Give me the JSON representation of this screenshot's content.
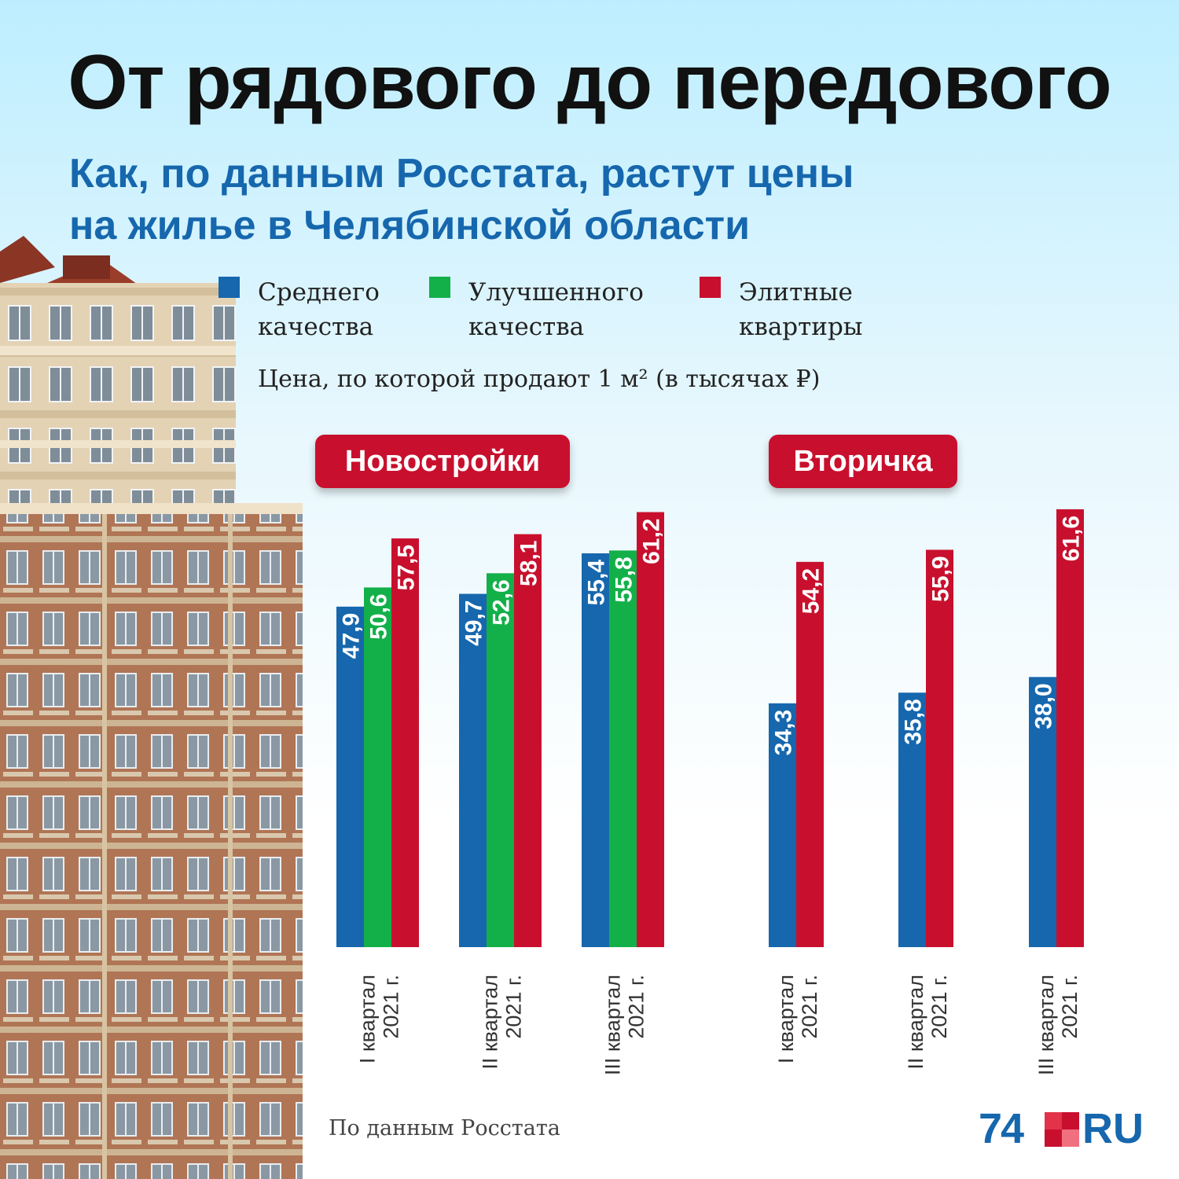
{
  "title": "От рядового до передового",
  "subtitle": {
    "line1": "Как, по данным Росстата, растут цены",
    "line2": "на жилье в Челябинской области"
  },
  "legend": [
    {
      "line1": "Среднего",
      "line2": "качества",
      "color": "#1667ad"
    },
    {
      "line1": "Улучшенного",
      "line2": "качества",
      "color": "#13b04a"
    },
    {
      "line1": "Элитные",
      "line2": "квартиры",
      "color": "#c8102e"
    }
  ],
  "unit_note": "Цена, по которой продают 1 м² (в тысячах ₽)",
  "source_note": "По данным Росстата",
  "brand": {
    "number": "74",
    "suffix": "RU"
  },
  "colors": {
    "medium": "#1667ad",
    "improved": "#13b04a",
    "elite": "#c8102e",
    "accent": "#c8102e"
  },
  "chart_data": [
    {
      "type": "bar",
      "title": "Новостройки",
      "categories": [
        {
          "line1": "I квартал",
          "line2": "2021 г."
        },
        {
          "line1": "II квартал",
          "line2": "2021 г."
        },
        {
          "line1": "III квартал",
          "line2": "2021 г."
        }
      ],
      "series": [
        {
          "name": "Среднего качества",
          "color": "#1667ad",
          "values": [
            47.9,
            49.7,
            55.4
          ],
          "labels": [
            "47,9",
            "49,7",
            "55,4"
          ]
        },
        {
          "name": "Улучшенного качества",
          "color": "#13b04a",
          "values": [
            50.6,
            52.6,
            55.8
          ],
          "labels": [
            "50,6",
            "52,6",
            "55,8"
          ]
        },
        {
          "name": "Элитные квартиры",
          "color": "#c8102e",
          "values": [
            57.5,
            58.1,
            61.2
          ],
          "labels": [
            "57,5",
            "58,1",
            "61,2"
          ]
        }
      ]
    },
    {
      "type": "bar",
      "title": "Вторичка",
      "categories": [
        {
          "line1": "I квартал",
          "line2": "2021 г."
        },
        {
          "line1": "II квартал",
          "line2": "2021 г."
        },
        {
          "line1": "III квартал",
          "line2": "2021 г."
        }
      ],
      "series": [
        {
          "name": "Среднего качества",
          "color": "#1667ad",
          "values": [
            34.3,
            35.8,
            38.0
          ],
          "labels": [
            "34,3",
            "35,8",
            "38,0"
          ]
        },
        {
          "name": "Элитные квартиры",
          "color": "#c8102e",
          "values": [
            54.2,
            55.9,
            61.6
          ],
          "labels": [
            "54,2",
            "55,9",
            "61,6"
          ]
        }
      ]
    }
  ]
}
